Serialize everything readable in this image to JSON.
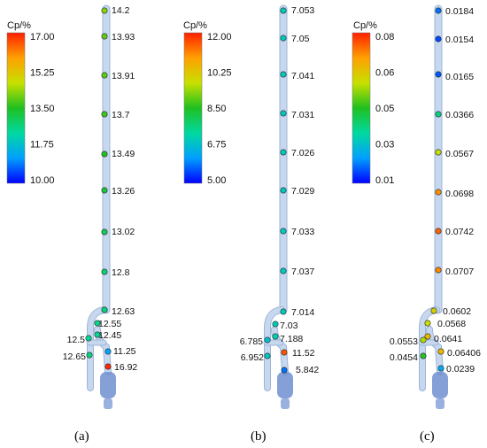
{
  "colors": {
    "pipe_fill": "#c6d7ee",
    "pipe_edge": "#9db6da",
    "valve": "#6f8fd0",
    "scale": [
      "#0000ff",
      "#00a0ff",
      "#00d8a0",
      "#20c020",
      "#c8e000",
      "#ffa000",
      "#ff2000"
    ]
  },
  "panels": [
    {
      "label": "(a)",
      "colorbar": {
        "title": "Cp/%",
        "ticks": [
          "17.00",
          "15.25",
          "13.50",
          "11.75",
          "10.00"
        ],
        "min": 10.0,
        "max": 17.0
      },
      "points": [
        {
          "value": 14.2,
          "label": "14.2"
        },
        {
          "value": 13.93,
          "label": "13.93"
        },
        {
          "value": 13.91,
          "label": "13.91"
        },
        {
          "value": 13.7,
          "label": "13.7"
        },
        {
          "value": 13.49,
          "label": "13.49"
        },
        {
          "value": 13.26,
          "label": "13.26"
        },
        {
          "value": 13.02,
          "label": "13.02"
        },
        {
          "value": 12.8,
          "label": "12.8"
        },
        {
          "value": 12.63,
          "label": "12.63"
        },
        {
          "value": 12.55,
          "label": "12.55"
        },
        {
          "value": 12.45,
          "label": "12.45"
        },
        {
          "value": 12.5,
          "label": "12.5"
        },
        {
          "value": 11.25,
          "label": "11.25"
        },
        {
          "value": 12.65,
          "label": "12.65"
        },
        {
          "value": 16.92,
          "label": "16.92"
        }
      ]
    },
    {
      "label": "(b)",
      "colorbar": {
        "title": "Cp/%",
        "ticks": [
          "12.00",
          "10.25",
          "8.50",
          "6.75",
          "5.00"
        ],
        "min": 5.0,
        "max": 12.0
      },
      "points": [
        {
          "value": 7.053,
          "label": "7.053"
        },
        {
          "value": 7.05,
          "label": "7.05"
        },
        {
          "value": 7.041,
          "label": "7.041"
        },
        {
          "value": 7.031,
          "label": "7.031"
        },
        {
          "value": 7.026,
          "label": "7.026"
        },
        {
          "value": 7.029,
          "label": "7.029"
        },
        {
          "value": 7.033,
          "label": "7.033"
        },
        {
          "value": 7.037,
          "label": "7.037"
        },
        {
          "value": 7.014,
          "label": "7.014"
        },
        {
          "value": 7.03,
          "label": "7.03"
        },
        {
          "value": 7.188,
          "label": "7.188"
        },
        {
          "value": 6.785,
          "label": "6.785"
        },
        {
          "value": 11.52,
          "label": "11.52"
        },
        {
          "value": 6.952,
          "label": "6.952"
        },
        {
          "value": 5.842,
          "label": "5.842"
        }
      ]
    },
    {
      "label": "(c)",
      "colorbar": {
        "title": "Cp/%",
        "ticks": [
          "0.08",
          "0.06",
          "0.05",
          "0.03",
          "0.01"
        ],
        "min": 0.01,
        "max": 0.08
      },
      "points": [
        {
          "value": 0.0184,
          "label": "0.0184"
        },
        {
          "value": 0.0154,
          "label": "0.0154"
        },
        {
          "value": 0.0165,
          "label": "0.0165"
        },
        {
          "value": 0.0366,
          "label": "0.0366"
        },
        {
          "value": 0.0567,
          "label": "0.0567"
        },
        {
          "value": 0.0698,
          "label": "0.0698"
        },
        {
          "value": 0.0742,
          "label": "0.0742"
        },
        {
          "value": 0.0707,
          "label": "0.0707"
        },
        {
          "value": 0.0602,
          "label": "0.0602"
        },
        {
          "value": 0.0568,
          "label": "0.0568"
        },
        {
          "value": 0.0641,
          "label": "0.0641"
        },
        {
          "value": 0.0553,
          "label": "0.0553"
        },
        {
          "value": 0.06406,
          "label": "0.06406"
        },
        {
          "value": 0.0454,
          "label": "0.0454"
        },
        {
          "value": 0.0239,
          "label": "0.0239"
        }
      ]
    }
  ]
}
